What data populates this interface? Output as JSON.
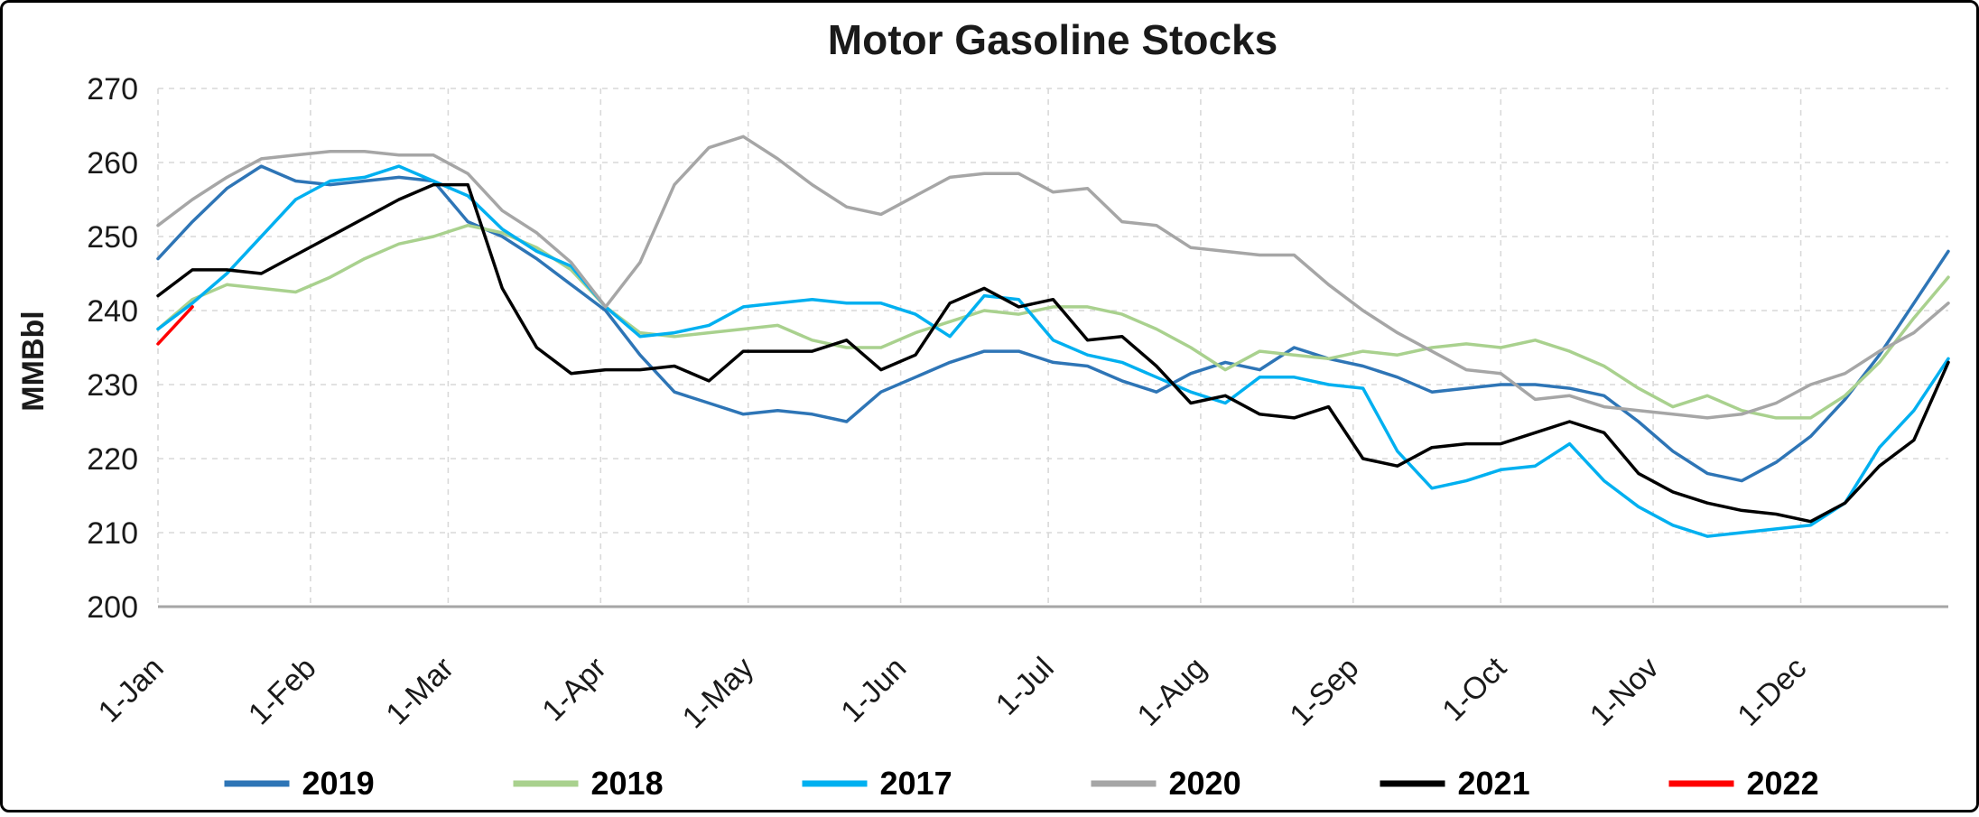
{
  "chart_data": {
    "type": "line",
    "title": "Motor Gasoline Stocks",
    "ylabel": "MMBbl",
    "ylim": [
      200,
      270
    ],
    "ytick_step": 10,
    "y_tick_labels": [
      "200",
      "210",
      "220",
      "230",
      "240",
      "250",
      "260",
      "270"
    ],
    "x_unit": "day_of_year",
    "x_range": [
      1,
      365
    ],
    "x_ticks": [
      {
        "label": "1-Jan",
        "day": 1
      },
      {
        "label": "1-Feb",
        "day": 32
      },
      {
        "label": "1-Mar",
        "day": 60
      },
      {
        "label": "1-Apr",
        "day": 91
      },
      {
        "label": "1-May",
        "day": 121
      },
      {
        "label": "1-Jun",
        "day": 152
      },
      {
        "label": "1-Jul",
        "day": 182
      },
      {
        "label": "1-Aug",
        "day": 213
      },
      {
        "label": "1-Sep",
        "day": 244
      },
      {
        "label": "1-Oct",
        "day": 274
      },
      {
        "label": "1-Nov",
        "day": 305
      },
      {
        "label": "1-Dec",
        "day": 335
      }
    ],
    "grid": "dashed",
    "grid_color": "#d9d9d9",
    "axis_color": "#a6a6a6",
    "text_color": "#1a1a1a",
    "legend": {
      "position": "bottom",
      "labels": [
        "2019",
        "2018",
        "2017",
        "2020",
        "2021",
        "2022"
      ]
    },
    "series": [
      {
        "name": "2019",
        "color": "#2e75b6",
        "start_day": 1,
        "step_days": 7,
        "values": [
          247,
          252,
          256.5,
          259.5,
          257.5,
          257,
          257.5,
          258,
          257.5,
          252,
          250,
          247,
          243.5,
          240,
          234,
          229,
          227.5,
          226,
          226.5,
          226,
          225,
          229,
          231,
          233,
          234.5,
          234.5,
          233,
          232.5,
          230.5,
          229,
          231.5,
          233,
          232,
          235,
          233.5,
          232.5,
          231,
          229,
          229.5,
          230,
          230,
          229.5,
          228.5,
          225,
          221,
          218,
          217,
          219.5,
          223,
          228,
          234,
          241,
          248
        ]
      },
      {
        "name": "2018",
        "color": "#a9d18e",
        "start_day": 1,
        "step_days": 7,
        "values": [
          237.5,
          241.5,
          243.5,
          243,
          242.5,
          244.5,
          247,
          249,
          250,
          251.5,
          250.5,
          248.5,
          245.5,
          240.5,
          237,
          236.5,
          237,
          237.5,
          238,
          236,
          235,
          235,
          237,
          238.5,
          240,
          239.5,
          240.5,
          240.5,
          239.5,
          237.5,
          235,
          232,
          234.5,
          234,
          233.5,
          234.5,
          234,
          235,
          235.5,
          235,
          236,
          234.5,
          232.5,
          229.5,
          227,
          228.5,
          226.5,
          225.5,
          225.5,
          228.5,
          233,
          239,
          244.5
        ]
      },
      {
        "name": "2017",
        "color": "#00b0f0",
        "start_day": 1,
        "step_days": 7,
        "values": [
          237.5,
          241,
          245,
          250,
          255,
          257.5,
          258,
          259.5,
          257.5,
          255.5,
          251,
          248,
          246,
          240.5,
          236.5,
          237,
          238,
          240.5,
          241,
          241.5,
          241,
          241,
          239.5,
          236.5,
          242,
          241.5,
          236,
          234,
          233,
          231,
          229,
          227.5,
          231,
          231,
          230,
          229.5,
          221,
          216,
          217,
          218.5,
          219,
          222,
          217,
          213.5,
          211,
          209.5,
          210,
          210.5,
          211,
          214,
          221.5,
          226.5,
          233.5
        ]
      },
      {
        "name": "2020",
        "color": "#a6a6a6",
        "start_day": 1,
        "step_days": 7,
        "values": [
          251.5,
          255,
          258,
          260.5,
          261,
          261.5,
          261.5,
          261,
          261,
          258.5,
          253.5,
          250.5,
          246.5,
          240.5,
          246.5,
          257,
          262,
          263.5,
          260.5,
          257,
          254,
          253,
          255.5,
          258,
          258.5,
          258.5,
          256,
          256.5,
          252,
          251.5,
          248.5,
          248,
          247.5,
          247.5,
          243.5,
          240,
          237,
          234.5,
          232,
          231.5,
          228,
          228.5,
          227,
          226.5,
          226,
          225.5,
          226,
          227.5,
          230,
          231.5,
          234.5,
          237,
          241
        ]
      },
      {
        "name": "2021",
        "color": "#000000",
        "start_day": 1,
        "step_days": 7,
        "values": [
          242,
          245.5,
          245.5,
          245,
          247.5,
          250,
          252.5,
          255,
          257,
          257,
          243,
          235,
          231.5,
          232,
          232,
          232.5,
          230.5,
          234.5,
          234.5,
          234.5,
          236,
          232,
          234,
          241,
          243,
          240.5,
          241.5,
          236,
          236.5,
          232.5,
          227.5,
          228.5,
          226,
          225.5,
          227,
          220,
          219,
          221.5,
          222,
          222,
          223.5,
          225,
          223.5,
          218,
          215.5,
          214,
          213,
          212.5,
          211.5,
          214,
          219,
          222.5,
          233
        ]
      },
      {
        "name": "2022",
        "color": "#ff0000",
        "start_day": 1,
        "step_days": 7,
        "values": [
          235.5,
          240.5
        ]
      }
    ]
  }
}
